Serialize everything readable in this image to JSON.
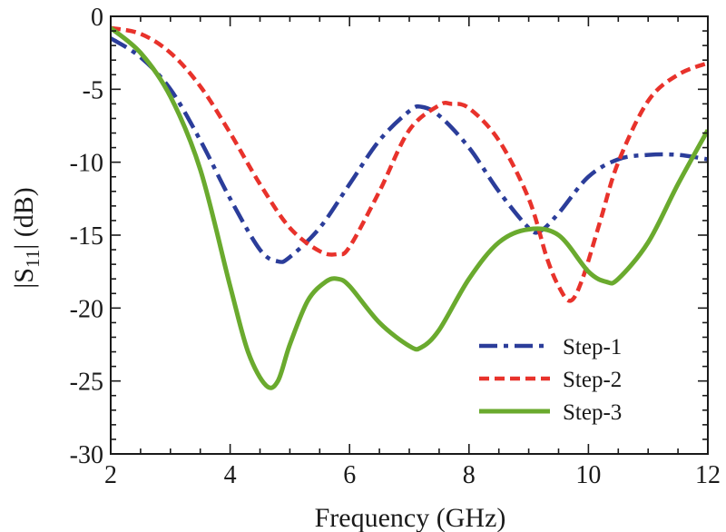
{
  "chart_data": {
    "type": "line",
    "title": "",
    "xlabel": "Frequency (GHz)",
    "ylabel_parts": {
      "prefix": "|S",
      "subscript": "11",
      "suffix": "| (dB)"
    },
    "xlim": [
      2,
      12
    ],
    "ylim": [
      -30,
      0
    ],
    "xticks": [
      2,
      4,
      6,
      8,
      10,
      12
    ],
    "yticks": [
      0,
      -5,
      -10,
      -15,
      -20,
      -25,
      -30
    ],
    "xtick_labels": [
      "2",
      "4",
      "6",
      "8",
      "10",
      "12"
    ],
    "ytick_labels": [
      "0",
      "-5",
      "-10",
      "-15",
      "-20",
      "-25",
      "-30"
    ],
    "legend_position": "bottom-right",
    "series": [
      {
        "name": "Step-1",
        "color": "#2b3d9a",
        "style": "dash-dot",
        "x": [
          2.0,
          2.5,
          3.0,
          3.5,
          4.0,
          4.5,
          4.8,
          5.0,
          5.5,
          6.0,
          6.5,
          7.0,
          7.2,
          7.5,
          8.0,
          8.5,
          9.0,
          9.2,
          9.5,
          10.0,
          10.5,
          11.0,
          11.5,
          12.0
        ],
        "y": [
          -1.5,
          -2.8,
          -5.0,
          -8.5,
          -12.5,
          -16.0,
          -16.8,
          -16.5,
          -14.5,
          -11.5,
          -8.5,
          -6.5,
          -6.2,
          -6.8,
          -9.0,
          -12.0,
          -14.5,
          -14.7,
          -13.5,
          -11.0,
          -9.8,
          -9.5,
          -9.5,
          -9.8
        ]
      },
      {
        "name": "Step-2",
        "color": "#e8322b",
        "style": "dashed",
        "x": [
          2.0,
          2.5,
          3.0,
          3.5,
          4.0,
          4.5,
          5.0,
          5.5,
          5.8,
          6.0,
          6.5,
          7.0,
          7.5,
          7.7,
          8.0,
          8.5,
          9.0,
          9.3,
          9.5,
          9.7,
          9.9,
          10.2,
          10.5,
          11.0,
          11.5,
          12.0
        ],
        "y": [
          -0.8,
          -1.2,
          -2.5,
          -4.8,
          -8.0,
          -11.5,
          -14.5,
          -16.1,
          -16.3,
          -15.8,
          -12.0,
          -7.8,
          -6.1,
          -6.0,
          -6.3,
          -8.5,
          -12.5,
          -16.5,
          -18.5,
          -19.5,
          -18.0,
          -14.0,
          -10.0,
          -5.8,
          -4.0,
          -3.2
        ]
      },
      {
        "name": "Step-3",
        "color": "#6aaa2e",
        "style": "solid",
        "x": [
          2.0,
          2.5,
          3.0,
          3.5,
          4.0,
          4.3,
          4.6,
          4.8,
          5.0,
          5.3,
          5.6,
          5.8,
          6.0,
          6.5,
          7.0,
          7.2,
          7.5,
          8.0,
          8.5,
          9.0,
          9.5,
          10.0,
          10.3,
          10.5,
          11.0,
          11.5,
          12.0
        ],
        "y": [
          -0.8,
          -2.5,
          -5.5,
          -10.5,
          -18.5,
          -23.0,
          -25.3,
          -25.0,
          -22.5,
          -19.5,
          -18.2,
          -18.0,
          -18.5,
          -21.0,
          -22.6,
          -22.7,
          -21.5,
          -18.0,
          -15.5,
          -14.6,
          -15.0,
          -17.5,
          -18.2,
          -18.0,
          -15.5,
          -11.5,
          -7.8
        ]
      }
    ]
  }
}
